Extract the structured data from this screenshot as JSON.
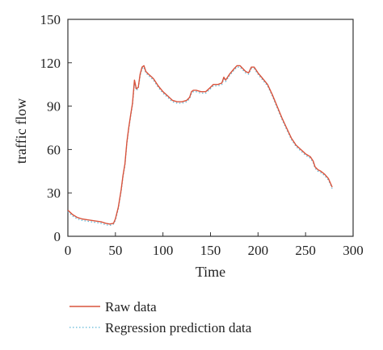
{
  "chart_data": {
    "type": "line",
    "xlabel": "Time",
    "ylabel": "traffic flow",
    "xlim": [
      0,
      300
    ],
    "ylim": [
      0,
      150
    ],
    "xticks": [
      0,
      50,
      100,
      150,
      200,
      250,
      300
    ],
    "yticks": [
      0,
      30,
      60,
      90,
      120,
      150
    ],
    "xtick_labels": [
      "0",
      "50",
      "100",
      "150",
      "200",
      "250",
      "300"
    ],
    "ytick_labels": [
      "0",
      "30",
      "60",
      "90",
      "120",
      "150"
    ],
    "grid": false,
    "legend_position": "bottom",
    "series": [
      {
        "name": "Raw data",
        "color": "#d9533c",
        "style": "solid",
        "points": [
          [
            0,
            18
          ],
          [
            5,
            15
          ],
          [
            10,
            13
          ],
          [
            15,
            12
          ],
          [
            20,
            11.5
          ],
          [
            25,
            11
          ],
          [
            30,
            10.5
          ],
          [
            35,
            10
          ],
          [
            40,
            9
          ],
          [
            44,
            8.5
          ],
          [
            48,
            9
          ],
          [
            50,
            12
          ],
          [
            53,
            20
          ],
          [
            56,
            32
          ],
          [
            58,
            42
          ],
          [
            60,
            50
          ],
          [
            62,
            65
          ],
          [
            64,
            75
          ],
          [
            66,
            84
          ],
          [
            68,
            92
          ],
          [
            70,
            108
          ],
          [
            72,
            102
          ],
          [
            74,
            103
          ],
          [
            76,
            112
          ],
          [
            78,
            117
          ],
          [
            80,
            118
          ],
          [
            82,
            114
          ],
          [
            85,
            112
          ],
          [
            90,
            109
          ],
          [
            95,
            104
          ],
          [
            100,
            100
          ],
          [
            105,
            97
          ],
          [
            110,
            94
          ],
          [
            115,
            93
          ],
          [
            120,
            93
          ],
          [
            125,
            94
          ],
          [
            128,
            96
          ],
          [
            130,
            100
          ],
          [
            132,
            101
          ],
          [
            135,
            101
          ],
          [
            140,
            100
          ],
          [
            145,
            100
          ],
          [
            150,
            103
          ],
          [
            153,
            105
          ],
          [
            158,
            105
          ],
          [
            162,
            106
          ],
          [
            164,
            110
          ],
          [
            166,
            108
          ],
          [
            170,
            112
          ],
          [
            175,
            116
          ],
          [
            178,
            118
          ],
          [
            181,
            118
          ],
          [
            184,
            116
          ],
          [
            187,
            114
          ],
          [
            190,
            113
          ],
          [
            193,
            117
          ],
          [
            196,
            117
          ],
          [
            200,
            113
          ],
          [
            205,
            109
          ],
          [
            210,
            105
          ],
          [
            215,
            98
          ],
          [
            220,
            90
          ],
          [
            225,
            82
          ],
          [
            230,
            75
          ],
          [
            235,
            68
          ],
          [
            240,
            63
          ],
          [
            245,
            60
          ],
          [
            250,
            57
          ],
          [
            255,
            55
          ],
          [
            258,
            52
          ],
          [
            260,
            48
          ],
          [
            263,
            46
          ],
          [
            266,
            45
          ],
          [
            270,
            43
          ],
          [
            274,
            40
          ],
          [
            278,
            34
          ]
        ]
      },
      {
        "name": "Regression prediction data",
        "color": "#5fb6d6",
        "style": "dotted",
        "points": [
          [
            0,
            17
          ],
          [
            5,
            14
          ],
          [
            10,
            12
          ],
          [
            15,
            11
          ],
          [
            20,
            10.5
          ],
          [
            25,
            10
          ],
          [
            30,
            9.5
          ],
          [
            35,
            9
          ],
          [
            40,
            8
          ],
          [
            44,
            7.5
          ],
          [
            48,
            8.5
          ],
          [
            50,
            11
          ],
          [
            53,
            19
          ],
          [
            56,
            31
          ],
          [
            58,
            41
          ],
          [
            60,
            49
          ],
          [
            62,
            64
          ],
          [
            64,
            74
          ],
          [
            66,
            83
          ],
          [
            68,
            91
          ],
          [
            70,
            106
          ],
          [
            72,
            101
          ],
          [
            74,
            102
          ],
          [
            76,
            111
          ],
          [
            78,
            116
          ],
          [
            80,
            117
          ],
          [
            82,
            113
          ],
          [
            85,
            111
          ],
          [
            90,
            108
          ],
          [
            95,
            103
          ],
          [
            100,
            99
          ],
          [
            105,
            96
          ],
          [
            110,
            93
          ],
          [
            115,
            92
          ],
          [
            120,
            92
          ],
          [
            125,
            93
          ],
          [
            128,
            95
          ],
          [
            130,
            99
          ],
          [
            132,
            100
          ],
          [
            135,
            100
          ],
          [
            140,
            99
          ],
          [
            145,
            99
          ],
          [
            150,
            102
          ],
          [
            153,
            104
          ],
          [
            158,
            104
          ],
          [
            162,
            105
          ],
          [
            164,
            109
          ],
          [
            166,
            107
          ],
          [
            170,
            111
          ],
          [
            175,
            115
          ],
          [
            178,
            117
          ],
          [
            181,
            117
          ],
          [
            184,
            115
          ],
          [
            187,
            113
          ],
          [
            190,
            112
          ],
          [
            193,
            116
          ],
          [
            196,
            116
          ],
          [
            200,
            112
          ],
          [
            205,
            108
          ],
          [
            210,
            104
          ],
          [
            215,
            97
          ],
          [
            220,
            89
          ],
          [
            225,
            81
          ],
          [
            230,
            74
          ],
          [
            235,
            67
          ],
          [
            240,
            62
          ],
          [
            245,
            59
          ],
          [
            250,
            56
          ],
          [
            255,
            54
          ],
          [
            258,
            51
          ],
          [
            260,
            47
          ],
          [
            263,
            45
          ],
          [
            266,
            44
          ],
          [
            270,
            42
          ],
          [
            274,
            39
          ],
          [
            278,
            33
          ]
        ]
      }
    ]
  }
}
